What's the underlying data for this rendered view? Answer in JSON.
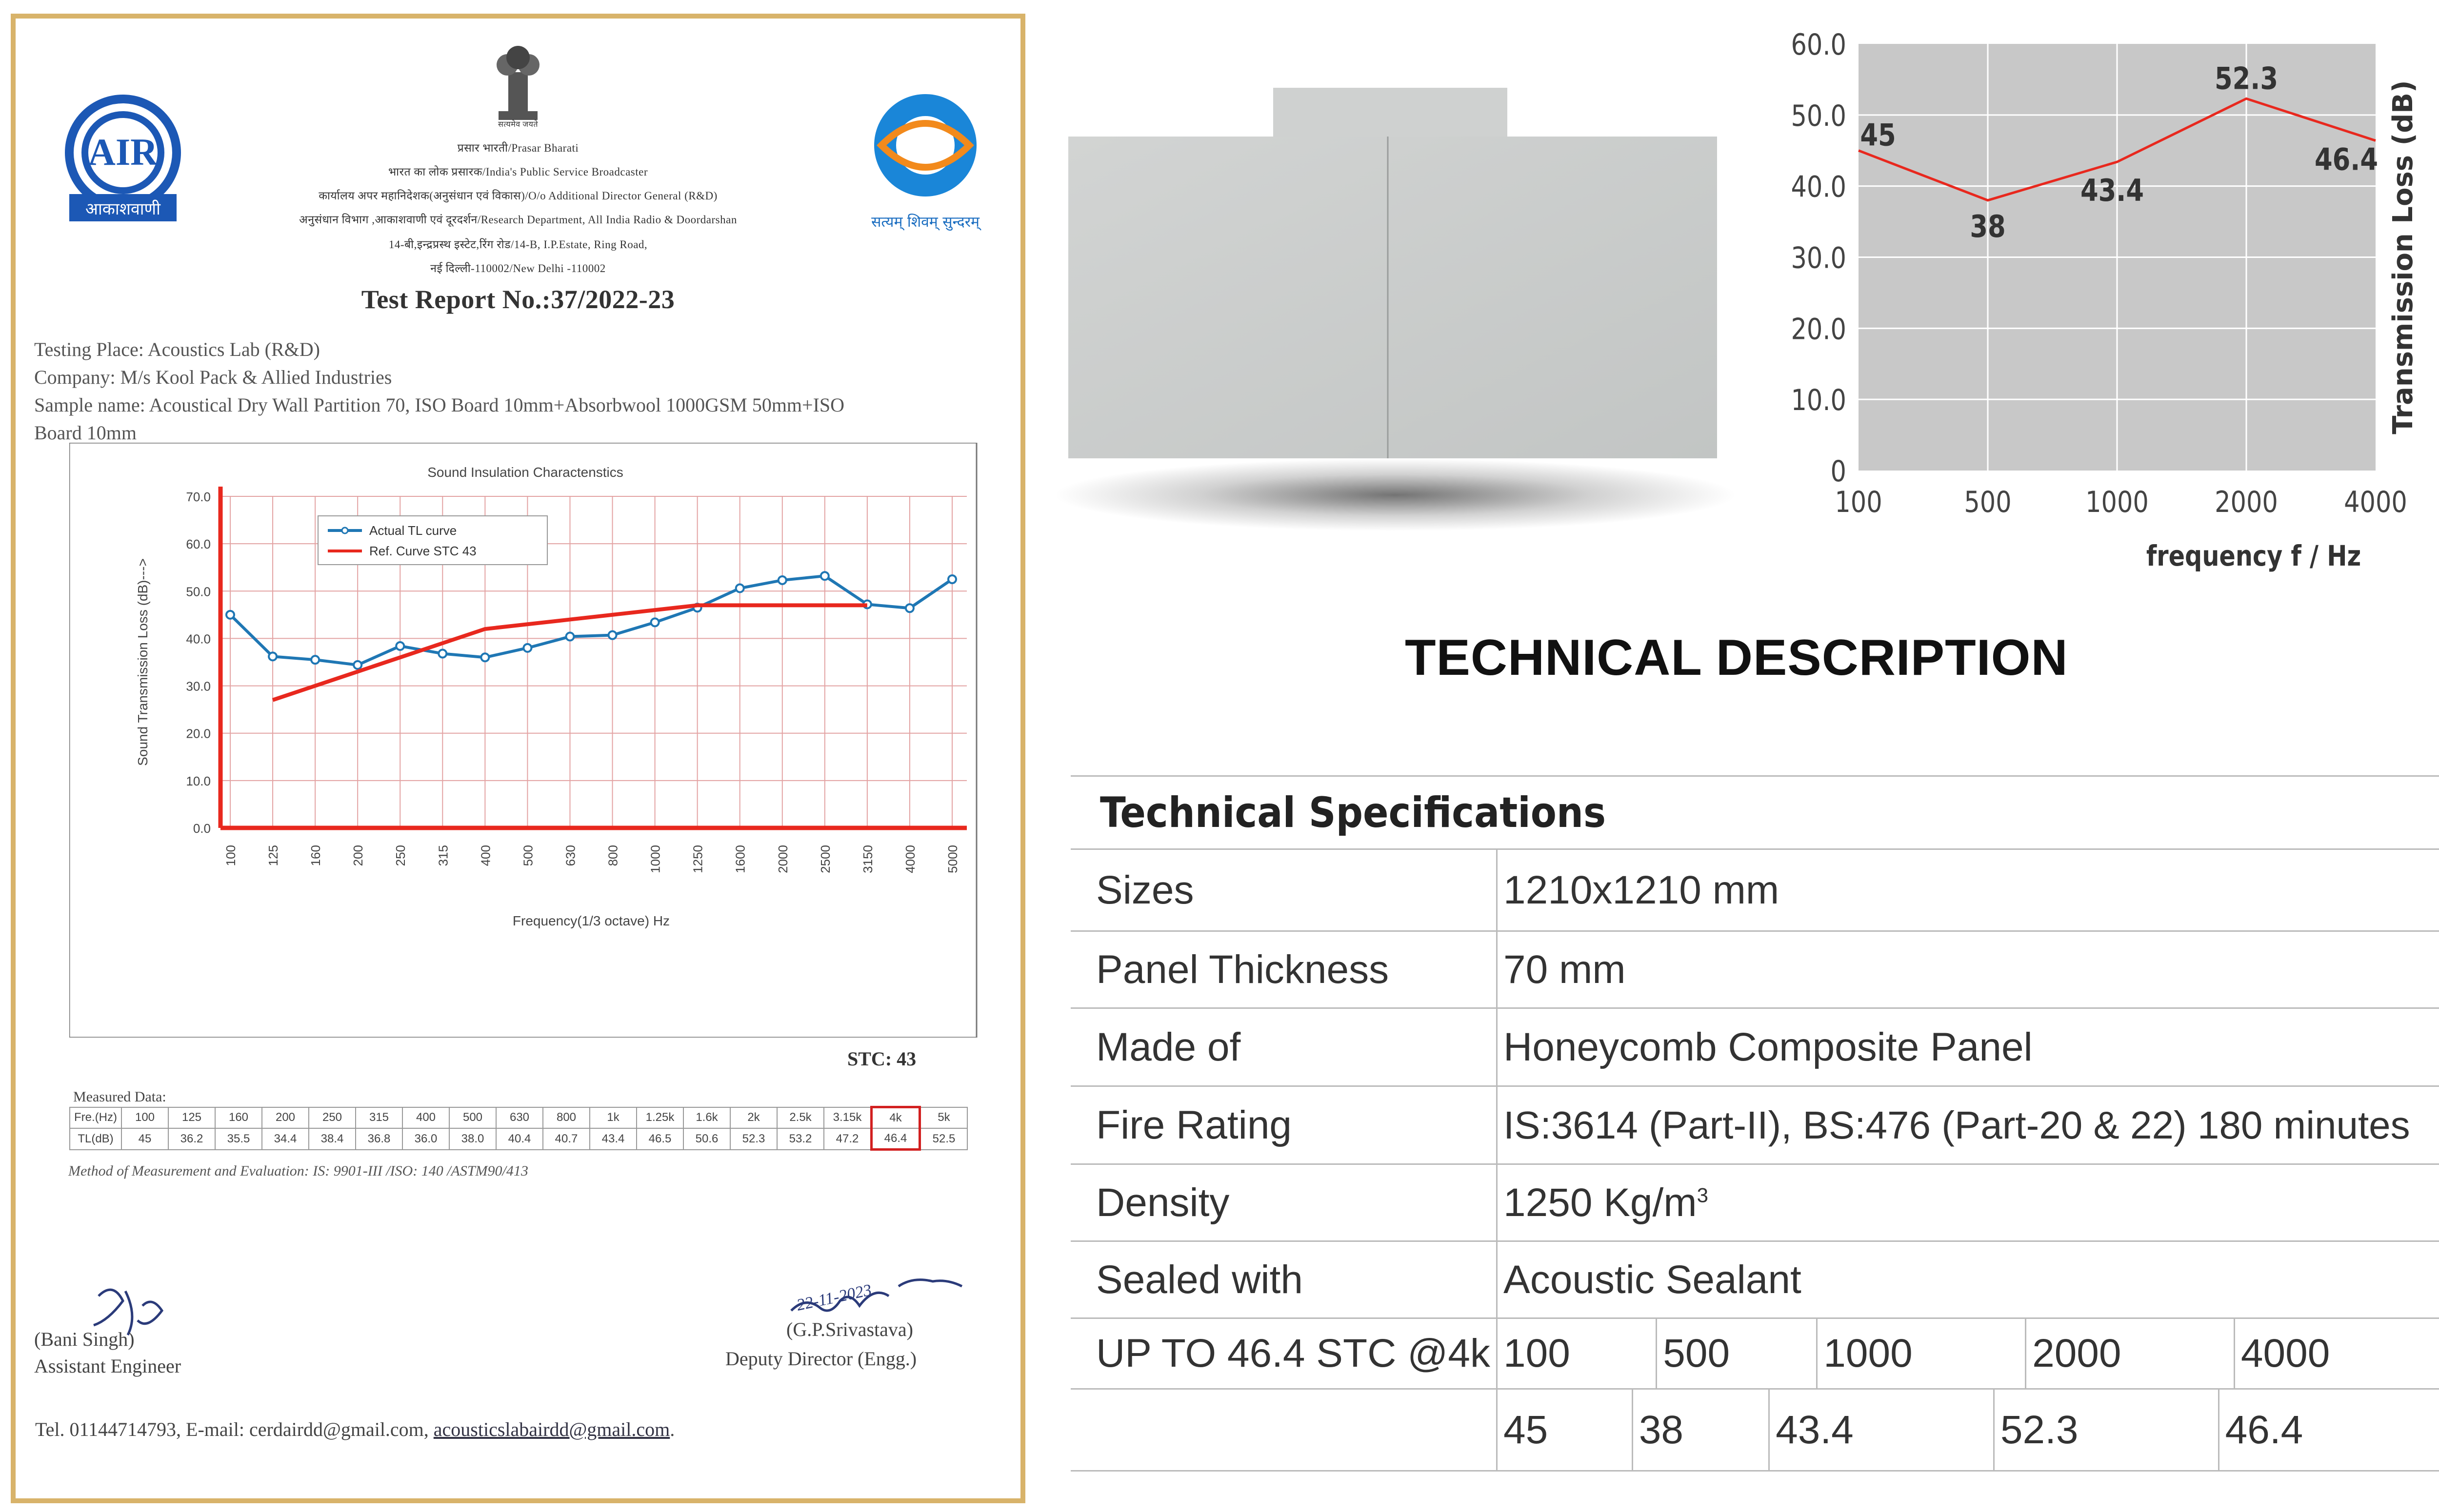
{
  "certificate": {
    "org_line_1": "प्रसार भारती/Prasar Bharati",
    "org_line_2": "भारत का लोक प्रसारक/India's Public Service Broadcaster",
    "org_line_3": "कार्यालय अपर महानिदेशक(अनुसंधान एवं विकास)/O/o Additional Director General (R&D)",
    "org_line_4": "अनुसंधान विभाग ,आकाशवाणी एवं दूरदर्शन/Research Department, All India Radio & Doordarshan",
    "org_line_5": "14-बी,इन्द्रप्रस्थ इस्टेट,रिंग रोड/14-B, I.P.Estate, Ring Road,",
    "org_line_6": "नई दिल्ली-110002/New Delhi -110002",
    "emblem_motto": "सत्यमेव जयते",
    "logo_left_text": "आकाशवाणी",
    "logo_right_text": "सत्यम् शिवम् सुन्दरम्",
    "title": "Test Report No.:37/2022-23",
    "testing_place": "Testing Place: Acoustics Lab (R&D)",
    "company": "Company:  M/s Kool Pack & Allied Industries",
    "sample_name": "Sample name: Acoustical Dry Wall Partition 70, ISO Board 10mm+Absorbwool 1000GSM 50mm+ISO",
    "sample_name_cont": "Board 10mm",
    "stc": "STC: 43",
    "measured_label": "Measured Data:",
    "method": "Method of Measurement and Evaluation: IS: 9901-III /ISO: 140 /ASTM90/413",
    "signer_left_name": "(Bani Singh)",
    "signer_left_title": "Assistant Engineer",
    "signer_right_name": "(G.P.Srivastava)",
    "signer_right_title": "Deputy Director (Engg.)",
    "signature_date": "22-11-2023",
    "contact_prefix": "Tel. 01144714793, E-mail: cerdairdd@gmail.com, ",
    "contact_link": "acousticslabairdd@gmail.com",
    "contact_suffix": ".",
    "table": {
      "row1_label": "Fre.(Hz)",
      "row2_label": "TL(dB)",
      "freqs": [
        "100",
        "125",
        "160",
        "200",
        "250",
        "315",
        "400",
        "500",
        "630",
        "800",
        "1k",
        "1.25k",
        "1.6k",
        "2k",
        "2.5k",
        "3.15k",
        "4k",
        "5k"
      ],
      "tl": [
        "45",
        "36.2",
        "35.5",
        "34.4",
        "38.4",
        "36.8",
        "36.0",
        "38.0",
        "40.4",
        "40.7",
        "43.4",
        "46.5",
        "50.6",
        "52.3",
        "53.2",
        "47.2",
        "46.4",
        "52.5"
      ],
      "highlight_color": "#d22020"
    }
  },
  "chart_data": [
    {
      "type": "line",
      "title": "Sound Insulation Charactenstics",
      "xlabel": "Frequency(1/3 octave) Hz",
      "ylabel": "Sound Transmission Loss (dB)--->",
      "categories": [
        "100",
        "125",
        "160",
        "200",
        "250",
        "315",
        "400",
        "500",
        "630",
        "800",
        "1000",
        "1250",
        "1600",
        "2000",
        "2500",
        "3150",
        "4000",
        "5000"
      ],
      "yticks": [
        "0.0",
        "10.0",
        "20.0",
        "30.0",
        "40.0",
        "50.0",
        "60.0",
        "70.0"
      ],
      "ylim": [
        0,
        70
      ],
      "grid": true,
      "legend": "top-left",
      "series": [
        {
          "name": "Actual TL curve",
          "color": "#1f77b4",
          "values": [
            45,
            36.2,
            35.5,
            34.4,
            38.4,
            36.8,
            36.0,
            38.0,
            40.4,
            40.7,
            43.4,
            46.5,
            50.6,
            52.3,
            53.2,
            47.2,
            46.4,
            52.5
          ]
        },
        {
          "name": "Ref. Curve STC 43",
          "color": "#e8281e",
          "values": [
            null,
            27,
            30,
            33,
            36,
            39,
            42,
            43,
            44,
            45,
            46,
            47,
            47,
            47,
            47,
            47,
            null,
            null
          ]
        }
      ]
    },
    {
      "type": "line",
      "xlabel": "frequency f / Hz",
      "ylabel": "Transmission Loss (dB)",
      "categories": [
        "100",
        "500",
        "1000",
        "2000",
        "4000"
      ],
      "yticks": [
        "0",
        "10.0",
        "20.0",
        "30.0",
        "40.0",
        "50.0",
        "60.0"
      ],
      "ylim": [
        0,
        60
      ],
      "grid": true,
      "background": "#c8c8c8",
      "series": [
        {
          "color": "#e8281e",
          "values": [
            45,
            38,
            43.4,
            52.3,
            46.4
          ],
          "labels": [
            "45",
            "38",
            "43.4",
            "52.3",
            "46.4"
          ]
        }
      ]
    }
  ],
  "tech": {
    "title": "TECHNICAL DESCRIPTION",
    "header": "Technical Specifications",
    "rows": [
      {
        "label": "Sizes",
        "value": "1210x1210 mm"
      },
      {
        "label": "Panel Thickness",
        "value": "70 mm"
      },
      {
        "label": "Made of",
        "value": "Honeycomb Composite Panel"
      },
      {
        "label": "Fire Rating",
        "value": "IS:3614 (Part-II), BS:476 (Part-20 & 22) 180 minutes"
      },
      {
        "label": "Density",
        "value": "1250 Kg/m",
        "sup": "3"
      },
      {
        "label": "Sealed with",
        "value": "Acoustic Sealant"
      }
    ],
    "stc_label": "UP TO 46.4 STC @4k",
    "stc_freqs": [
      "100",
      "500",
      "1000",
      "2000",
      "4000"
    ],
    "stc_values": [
      "45",
      "38",
      "43.4",
      "52.3",
      "46.4"
    ]
  }
}
